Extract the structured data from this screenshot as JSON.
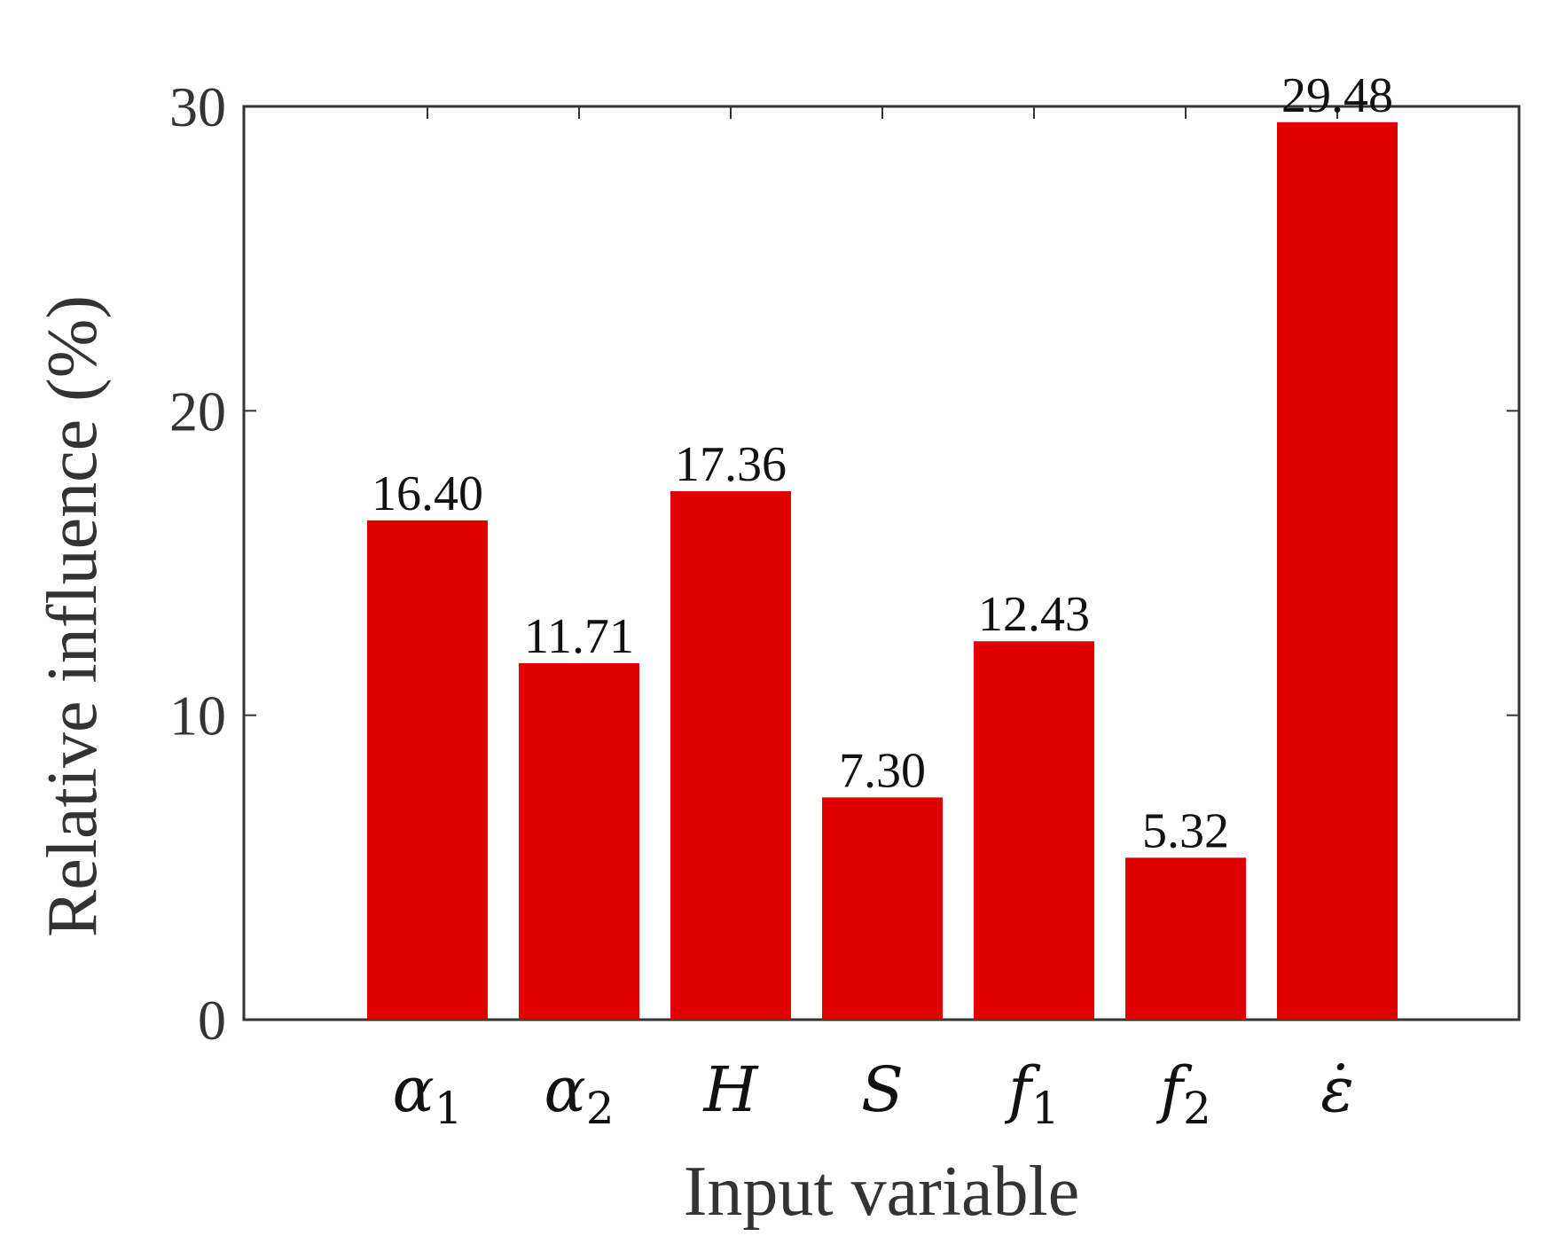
{
  "chart_data": {
    "type": "bar",
    "title": "",
    "xlabel": "Input variable",
    "ylabel": "Relative influence (%)",
    "ylim": [
      0,
      30
    ],
    "yticks": [
      0,
      10,
      20,
      30
    ],
    "categories": [
      {
        "base": "α",
        "sub": "1"
      },
      {
        "base": "α",
        "sub": "2"
      },
      {
        "base": "H",
        "sub": ""
      },
      {
        "base": "S",
        "sub": ""
      },
      {
        "base": "f",
        "sub": "1"
      },
      {
        "base": "f",
        "sub": "2"
      },
      {
        "base": "ε̇",
        "sub": ""
      }
    ],
    "values": [
      16.4,
      11.71,
      17.36,
      7.3,
      12.43,
      5.32,
      29.48
    ],
    "data_labels": [
      "16.40",
      "11.71",
      "17.36",
      "7.30",
      "12.43",
      "5.32",
      "29.48"
    ],
    "bar_color": "#e00000",
    "grid": false,
    "legend": "none"
  }
}
